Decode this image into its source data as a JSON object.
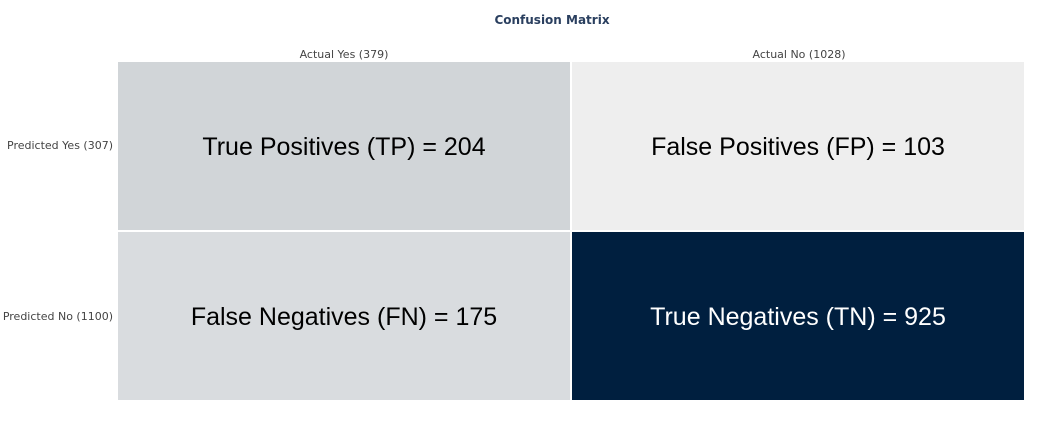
{
  "chart_data": {
    "type": "heatmap",
    "title": "Confusion Matrix",
    "columns": [
      "Actual Yes (379)",
      "Actual No (1028)"
    ],
    "rows": [
      "Predicted Yes (307)",
      "Predicted No (1100)"
    ],
    "values": [
      [
        204,
        103
      ],
      [
        175,
        925
      ]
    ],
    "cell_labels": [
      [
        "True Positives (TP) = 204",
        "False Positives (FP) = 103"
      ],
      [
        "False Negatives (FN) = 175",
        "True Negatives (TN) = 925"
      ]
    ],
    "colors": {
      "low": "#eeeeee",
      "high": "#001f3f",
      "text_dark": "#000000",
      "text_light": "#ffffff"
    },
    "grid": false,
    "legend": "none"
  }
}
